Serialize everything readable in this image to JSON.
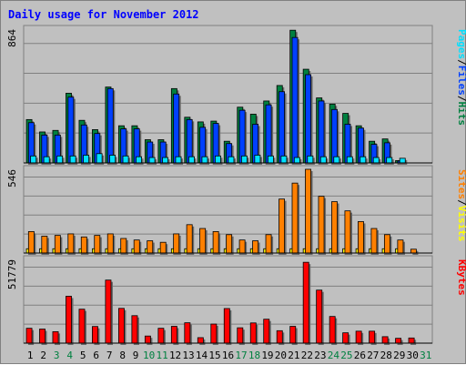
{
  "chart_data": {
    "type": "bar",
    "title": "Daily usage for November 2012",
    "colors": {
      "hits": "#008040",
      "files": "#0040ff",
      "pages": "#00e0ff",
      "visits": "#ffff00",
      "sites": "#ff8000",
      "kbytes": "#ff0000",
      "weekend_label": "#008040",
      "weekday_label": "#000000",
      "title": "#0000ff",
      "plot_bg": "#c0c0c0",
      "grid": "#808080"
    },
    "categories": [
      "1",
      "2",
      "3",
      "4",
      "5",
      "6",
      "7",
      "8",
      "9",
      "10",
      "11",
      "12",
      "13",
      "14",
      "15",
      "16",
      "17",
      "18",
      "19",
      "20",
      "21",
      "22",
      "23",
      "24",
      "25",
      "26",
      "27",
      "28",
      "29",
      "30",
      "31"
    ],
    "weekend_days": [
      "3",
      "4",
      "10",
      "11",
      "17",
      "18",
      "24",
      "25",
      "31"
    ],
    "panels": [
      {
        "name": "hits",
        "max_label": "864",
        "max": 864,
        "legend": [
          "Pages",
          "/",
          "Files",
          "/",
          "Hits"
        ],
        "series": [
          {
            "name": "Hits",
            "values": [
              280,
              200,
              210,
              450,
              275,
              215,
              490,
              240,
              240,
              150,
              150,
              480,
              295,
              265,
              270,
              140,
              360,
              315,
              400,
              500,
              857,
              605,
              420,
              380,
              320,
              240,
              140,
              155,
              15,
              0,
              0
            ]
          },
          {
            "name": "Files",
            "values": [
              260,
              180,
              180,
              425,
              245,
              190,
              480,
              220,
              220,
              135,
              135,
              445,
              280,
              230,
              255,
              125,
              340,
              250,
              375,
              460,
              810,
              570,
              400,
              345,
              250,
              225,
              120,
              130,
              12,
              0,
              0
            ]
          },
          {
            "name": "Pages",
            "values": [
              45,
              40,
              45,
              45,
              50,
              60,
              50,
              45,
              40,
              35,
              35,
              40,
              40,
              40,
              45,
              40,
              45,
              50,
              45,
              45,
              35,
              45,
              40,
              40,
              40,
              40,
              35,
              35,
              30,
              0,
              0
            ]
          }
        ]
      },
      {
        "name": "visits",
        "max_label": "546",
        "max": 546,
        "legend": [
          "Sites",
          "/",
          "Visits"
        ],
        "series": [
          {
            "name": "Visits",
            "values": [
              28,
              28,
              28,
              28,
              28,
              28,
              28,
              28,
              28,
              28,
              28,
              28,
              28,
              28,
              28,
              28,
              28,
              28,
              28,
              28,
              28,
              28,
              28,
              28,
              28,
              28,
              28,
              28,
              28,
              0,
              0
            ]
          },
          {
            "name": "Sites",
            "values": [
              140,
              110,
              115,
              125,
              105,
              115,
              125,
              95,
              85,
              80,
              70,
              125,
              185,
              160,
              140,
              120,
              85,
              80,
              120,
              352,
              456,
              546,
              370,
              335,
              275,
              205,
              160,
              120,
              85,
              25,
              0
            ]
          }
        ]
      },
      {
        "name": "kbytes",
        "max_label": "51779",
        "max": 51779,
        "legend": [
          "KBytes"
        ],
        "series": [
          {
            "name": "KBytes",
            "values": [
              9200,
              8700,
              7100,
              29000,
              21000,
              10300,
              39000,
              21500,
              17000,
              4400,
              9200,
              10400,
              12600,
              3400,
              11800,
              21400,
              9500,
              12500,
              14800,
              7700,
              10400,
              50000,
              32800,
              16500,
              6400,
              7400,
              7400,
              4000,
              3000,
              3200,
              0
            ]
          }
        ]
      }
    ]
  }
}
